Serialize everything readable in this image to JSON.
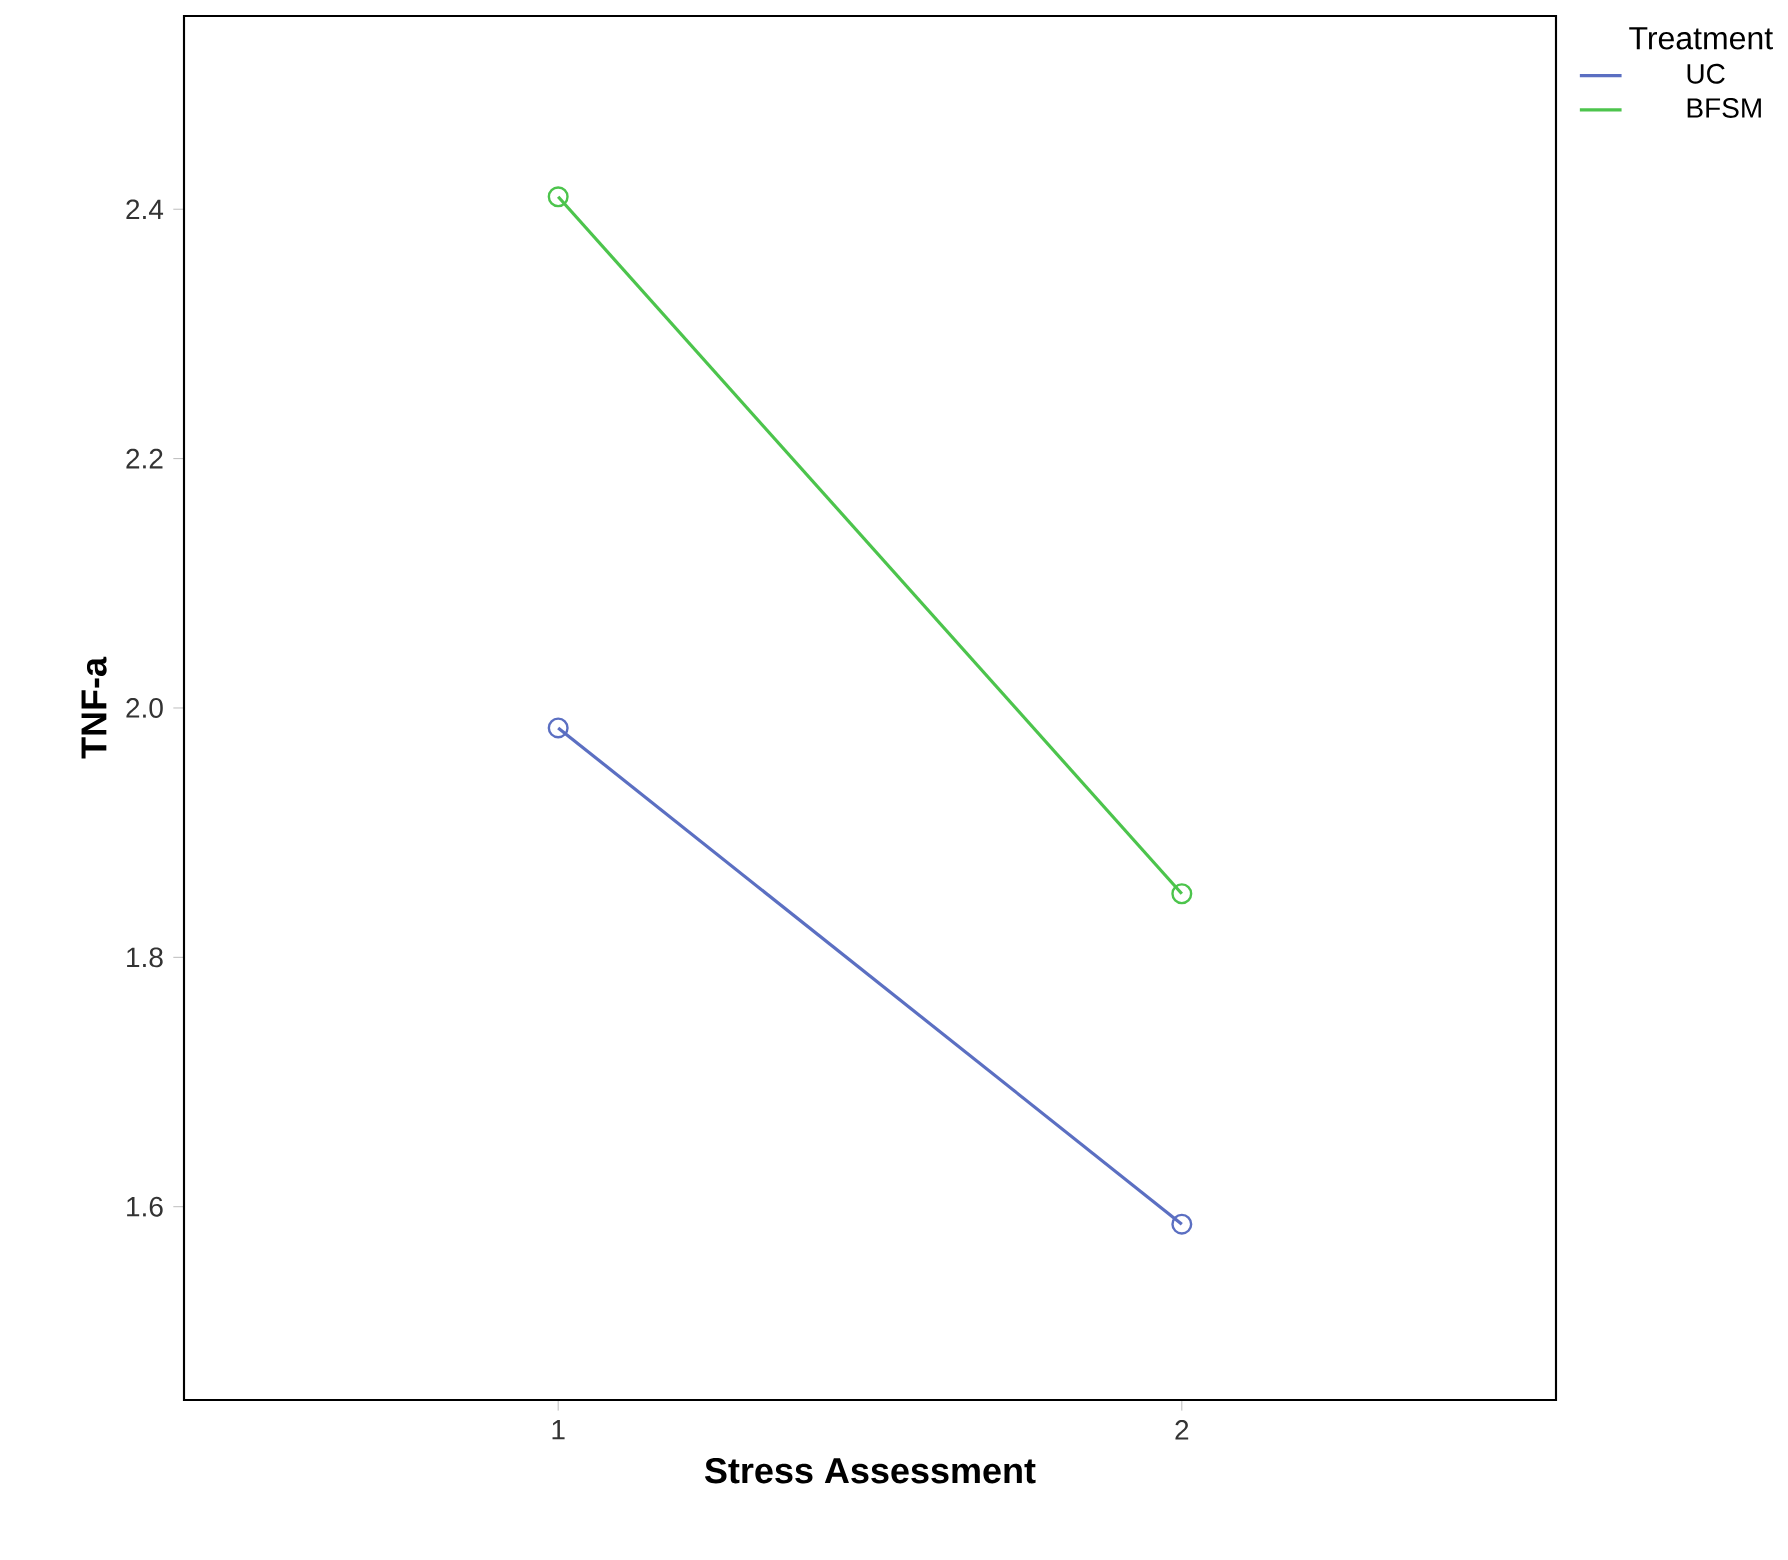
{
  "chart_data": {
    "type": "line",
    "xlabel": "Stress Assessment",
    "ylabel": "TNF-a",
    "legend_title": "Treatment",
    "categories": [
      "1",
      "2"
    ],
    "series": [
      {
        "name": "UC",
        "color": "#5b6fc2",
        "values": [
          1.984,
          1.586
        ]
      },
      {
        "name": "BFSM",
        "color": "#4cc44c",
        "values": [
          2.41,
          1.851
        ]
      }
    ],
    "ylim": [
      1.445,
      2.555
    ],
    "yticks": [
      1.6,
      1.8,
      {
        "value": 2.0,
        "label": "2.0"
      },
      2.2,
      2.4
    ],
    "marker": "circle",
    "legend": "right"
  }
}
